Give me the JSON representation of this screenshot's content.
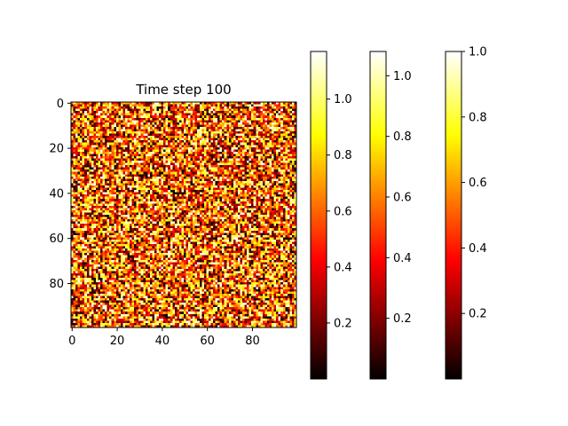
{
  "chart_data": [
    {
      "type": "heatmap",
      "title": "Time step 100",
      "rows": 100,
      "cols": 100,
      "origin": "upper",
      "colormap": "hot",
      "vrange": [
        0.0,
        1.17
      ],
      "x_ticks": [
        0,
        20,
        40,
        60,
        80
      ],
      "y_ticks": [
        0,
        20,
        40,
        60,
        80
      ],
      "values_note": "100x100 field of values spread across 0 to about 1.17"
    },
    {
      "type": "colorbar",
      "range": [
        0.0,
        1.17
      ],
      "colormap": "hot",
      "ticks": [
        0.2,
        0.4,
        0.6,
        0.8,
        1.0
      ]
    },
    {
      "type": "colorbar",
      "range": [
        0.0,
        1.08
      ],
      "colormap": "hot",
      "ticks": [
        0.2,
        0.4,
        0.6,
        0.8,
        1.0
      ]
    },
    {
      "type": "colorbar",
      "range": [
        0.0,
        1.0
      ],
      "colormap": "hot",
      "ticks": [
        0.2,
        0.4,
        0.6,
        0.8,
        1.0
      ]
    }
  ]
}
